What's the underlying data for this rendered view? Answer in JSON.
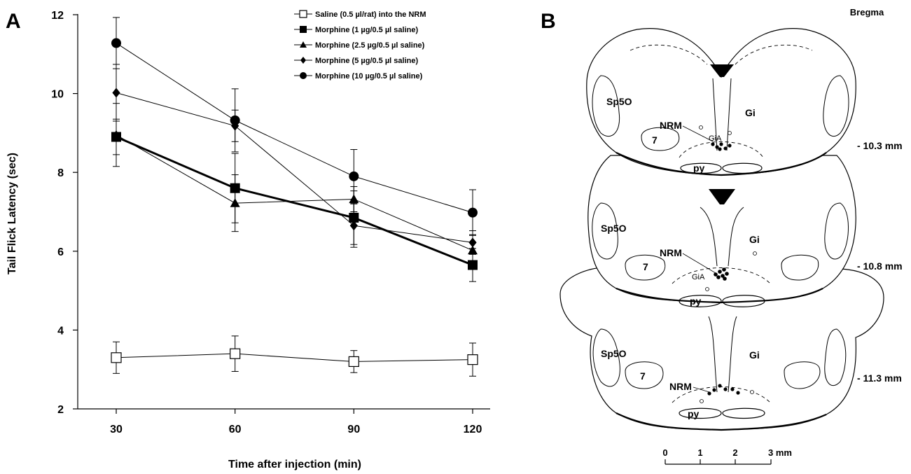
{
  "panels": {
    "a": "A",
    "b": "B"
  },
  "chart_data": {
    "type": "line",
    "xlabel": "Time after injection (min)",
    "ylabel": "Tail Flick Latency (sec)",
    "x": [
      30,
      60,
      90,
      120
    ],
    "ylim": [
      2,
      12
    ],
    "yticks": [
      2,
      4,
      6,
      8,
      10,
      12
    ],
    "grid": false,
    "legend_position": "top-right",
    "series": [
      {
        "name": "Saline (0.5 µl/rat) into the NRM",
        "marker": "square-open",
        "line": "thin",
        "values": [
          3.3,
          3.4,
          3.2,
          3.25
        ],
        "errors": [
          0.4,
          0.45,
          0.28,
          0.42
        ]
      },
      {
        "name": "Morphine (1 µg/0.5 µl saline)",
        "marker": "square",
        "line": "thick",
        "values": [
          8.9,
          7.6,
          6.85,
          5.65
        ],
        "errors": [
          0.45,
          0.88,
          0.68,
          0.42
        ]
      },
      {
        "name": "Morphine (2.5 µg/0.5 µl saline)",
        "marker": "triangle",
        "line": "thin",
        "values": [
          8.95,
          7.22,
          7.32,
          6.02
        ],
        "errors": [
          0.8,
          0.72,
          0.32,
          0.4
        ]
      },
      {
        "name": "Morphine (5 µg/0.5 µl saline)",
        "marker": "diamond",
        "line": "thin",
        "values": [
          10.02,
          9.18,
          6.65,
          6.22
        ],
        "errors": [
          0.72,
          0.4,
          0.55,
          0.3
        ]
      },
      {
        "name": "Morphine (10 µg/0.5 µl saline)",
        "marker": "circle",
        "line": "thin",
        "values": [
          11.28,
          9.32,
          7.9,
          6.98
        ],
        "errors": [
          0.65,
          0.8,
          0.68,
          0.58
        ]
      }
    ]
  },
  "atlas": {
    "header": "Bregma",
    "levels": [
      {
        "coordinate": "- 10.3 mm",
        "labels": {
          "sp5o": "Sp5O",
          "gi": "Gi",
          "nrm": "NRM",
          "gia": "GiA",
          "seven": "7",
          "py": "py"
        }
      },
      {
        "coordinate": "- 10.8 mm",
        "labels": {
          "sp5o": "Sp5O",
          "gi": "Gi",
          "nrm": "NRM",
          "gia": "GiA",
          "seven": "7",
          "py": "py"
        }
      },
      {
        "coordinate": "- 11.3 mm",
        "labels": {
          "sp5o": "Sp5O",
          "gi": "Gi",
          "nrm": "NRM",
          "seven": "7",
          "py": "py"
        }
      }
    ],
    "scale_bar": {
      "ticks": [
        "0",
        "1",
        "2",
        "3 mm"
      ]
    }
  }
}
